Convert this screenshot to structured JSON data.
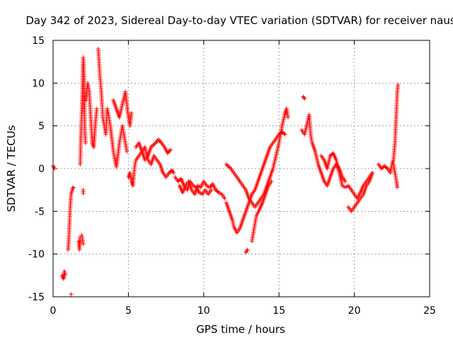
{
  "chart_data": {
    "type": "scatter",
    "title": "Day 342 of 2023, Sidereal Day-to-day VTEC variation (SDTVAR) for receiver naus",
    "xlabel": "GPS time / hours",
    "ylabel": "SDTVAR / TECUs",
    "xlim": [
      0,
      25
    ],
    "ylim": [
      -15,
      15
    ],
    "xticks": [
      0,
      5,
      10,
      15,
      20,
      25
    ],
    "yticks": [
      -15,
      -10,
      -5,
      0,
      5,
      10,
      15
    ],
    "xtick_labels": [
      "0",
      "5",
      "10",
      "15",
      "20",
      "25"
    ],
    "ytick_labels": [
      "-15",
      "-10",
      "-5",
      "0",
      "5",
      "10",
      "15"
    ],
    "grid": true,
    "marker": "+",
    "series": [
      {
        "name": "SDTVAR",
        "color": "#ff0000",
        "segments": [
          [
            [
              0.0,
              0.3
            ],
            [
              0.1,
              0.0
            ]
          ],
          [
            [
              0.6,
              -12.5
            ],
            [
              0.7,
              -12.9
            ],
            [
              0.75,
              -12.0
            ],
            [
              0.8,
              -12.4
            ]
          ],
          [
            [
              1.0,
              -9.5
            ],
            [
              1.05,
              -8.0
            ],
            [
              1.1,
              -6.0
            ],
            [
              1.15,
              -4.0
            ],
            [
              1.2,
              -3.0
            ],
            [
              1.3,
              -2.3
            ],
            [
              1.35,
              -2.2
            ]
          ],
          [
            [
              1.2,
              -14.7
            ]
          ],
          [
            [
              1.7,
              -8.5
            ],
            [
              1.75,
              -9.5
            ],
            [
              1.8,
              -8.0
            ]
          ],
          [
            [
              1.8,
              0.5
            ],
            [
              1.85,
              4.0
            ],
            [
              1.9,
              6.0
            ],
            [
              1.95,
              9.0
            ],
            [
              2.0,
              13.0
            ],
            [
              2.05,
              11.0
            ],
            [
              2.1,
              5.0
            ],
            [
              2.15,
              3.0
            ]
          ],
          [
            [
              2.0,
              -2.5
            ],
            [
              2.0,
              -2.9
            ]
          ],
          [
            [
              1.9,
              -7.8
            ],
            [
              2.0,
              -8.8
            ]
          ],
          [
            [
              2.2,
              8.0
            ],
            [
              2.3,
              10.0
            ],
            [
              2.4,
              9.0
            ],
            [
              2.5,
              6.0
            ],
            [
              2.6,
              3.0
            ],
            [
              2.7,
              2.5
            ],
            [
              2.8,
              5.0
            ],
            [
              2.9,
              7.0
            ]
          ],
          [
            [
              3.0,
              14.0
            ],
            [
              3.1,
              11.0
            ],
            [
              3.2,
              9.0
            ],
            [
              3.3,
              6.0
            ],
            [
              3.4,
              5.0
            ],
            [
              3.5,
              4.0
            ],
            [
              3.6,
              7.0
            ],
            [
              3.7,
              6.0
            ],
            [
              3.8,
              5.0
            ],
            [
              3.9,
              3.5
            ],
            [
              4.0,
              2.0
            ],
            [
              4.1,
              1.0
            ],
            [
              4.2,
              0.2
            ],
            [
              4.3,
              1.5
            ],
            [
              4.4,
              3.0
            ],
            [
              4.5,
              4.0
            ],
            [
              4.6,
              5.0
            ],
            [
              4.7,
              4.0
            ],
            [
              4.8,
              3.0
            ],
            [
              4.9,
              2.0
            ]
          ],
          [
            [
              4.0,
              8.0
            ],
            [
              4.2,
              7.0
            ],
            [
              4.4,
              6.0
            ],
            [
              4.6,
              7.5
            ],
            [
              4.8,
              9.0
            ],
            [
              5.0,
              6.0
            ],
            [
              5.1,
              5.0
            ],
            [
              5.2,
              6.5
            ]
          ],
          [
            [
              5.0,
              -1.0
            ],
            [
              5.1,
              -0.5
            ],
            [
              5.2,
              -1.5
            ],
            [
              5.3,
              -2.0
            ],
            [
              5.4,
              0.0
            ],
            [
              5.5,
              1.0
            ],
            [
              5.7,
              1.5
            ],
            [
              5.9,
              2.0
            ],
            [
              6.1,
              1.0
            ],
            [
              6.3,
              1.5
            ],
            [
              6.5,
              2.5
            ],
            [
              6.8,
              3.0
            ],
            [
              7.0,
              3.4
            ],
            [
              7.2,
              3.0
            ],
            [
              7.4,
              2.5
            ],
            [
              7.6,
              1.8
            ],
            [
              7.8,
              2.2
            ]
          ],
          [
            [
              5.5,
              2.5
            ],
            [
              5.7,
              3.0
            ],
            [
              5.9,
              2.0
            ],
            [
              6.1,
              2.5
            ],
            [
              6.3,
              1.0
            ],
            [
              6.5,
              0.5
            ],
            [
              6.7,
              1.5
            ],
            [
              6.9,
              1.0
            ],
            [
              7.1,
              0.5
            ],
            [
              7.3,
              -0.5
            ],
            [
              7.5,
              -1.0
            ],
            [
              7.7,
              -0.5
            ],
            [
              7.9,
              -0.2
            ],
            [
              8.0,
              -0.5
            ]
          ],
          [
            [
              8.1,
              -1.0
            ],
            [
              8.3,
              -1.5
            ],
            [
              8.5,
              -1.2
            ],
            [
              8.7,
              -2.0
            ],
            [
              8.9,
              -2.5
            ],
            [
              9.1,
              -1.5
            ],
            [
              9.3,
              -2.0
            ],
            [
              9.5,
              -2.2
            ],
            [
              9.7,
              -2.8
            ],
            [
              9.9,
              -3.0
            ],
            [
              10.1,
              -2.5
            ],
            [
              10.3,
              -3.0
            ],
            [
              10.5,
              -2.5
            ]
          ],
          [
            [
              8.4,
              -2.0
            ],
            [
              8.6,
              -2.8
            ],
            [
              8.8,
              -2.0
            ],
            [
              9.0,
              -1.5
            ],
            [
              9.2,
              -2.5
            ],
            [
              9.4,
              -3.0
            ],
            [
              9.6,
              -2.0
            ],
            [
              9.8,
              -2.2
            ],
            [
              10.0,
              -1.5
            ],
            [
              10.2,
              -2.0
            ],
            [
              10.4,
              -2.2
            ],
            [
              10.6,
              -1.8
            ],
            [
              10.8,
              -2.5
            ],
            [
              11.0,
              -2.8
            ],
            [
              11.2,
              -3.0
            ],
            [
              11.4,
              -3.5
            ]
          ],
          [
            [
              11.5,
              -4.0
            ],
            [
              11.6,
              -4.5
            ],
            [
              11.7,
              -5.0
            ],
            [
              11.8,
              -5.5
            ],
            [
              11.9,
              -6.0
            ],
            [
              12.0,
              -6.8
            ],
            [
              12.2,
              -7.5
            ],
            [
              12.4,
              -7.0
            ],
            [
              12.6,
              -6.0
            ],
            [
              12.8,
              -5.0
            ],
            [
              13.0,
              -4.0
            ],
            [
              13.2,
              -3.0
            ],
            [
              13.4,
              -2.5
            ],
            [
              13.6,
              -1.5
            ],
            [
              13.8,
              -0.5
            ],
            [
              14.0,
              0.5
            ],
            [
              14.2,
              1.5
            ],
            [
              14.4,
              2.5
            ],
            [
              14.6,
              3.0
            ],
            [
              14.8,
              3.5
            ],
            [
              15.0,
              4.0
            ],
            [
              15.2,
              4.3
            ],
            [
              15.4,
              4.0
            ]
          ],
          [
            [
              11.5,
              0.5
            ],
            [
              11.8,
              0.0
            ],
            [
              12.0,
              -0.5
            ],
            [
              12.2,
              -1.0
            ],
            [
              12.4,
              -1.5
            ],
            [
              12.6,
              -2.0
            ],
            [
              12.8,
              -2.5
            ],
            [
              13.0,
              -3.5
            ],
            [
              13.2,
              -4.0
            ],
            [
              13.4,
              -4.5
            ],
            [
              13.6,
              -4.0
            ],
            [
              13.8,
              -3.5
            ],
            [
              14.0,
              -3.0
            ],
            [
              14.2,
              -2.0
            ],
            [
              14.4,
              -1.0
            ],
            [
              14.6,
              0.0
            ],
            [
              14.8,
              1.5
            ],
            [
              15.0,
              3.0
            ],
            [
              15.2,
              5.0
            ],
            [
              15.4,
              6.5
            ],
            [
              15.5,
              7.0
            ],
            [
              15.6,
              6.0
            ]
          ],
          [
            [
              12.8,
              -9.8
            ],
            [
              12.9,
              -9.5
            ]
          ],
          [
            [
              13.2,
              -8.5
            ],
            [
              13.3,
              -7.5
            ],
            [
              13.4,
              -6.5
            ],
            [
              13.5,
              -5.5
            ],
            [
              13.7,
              -4.8
            ],
            [
              13.9,
              -4.0
            ],
            [
              14.1,
              -3.0
            ],
            [
              14.3,
              -2.0
            ],
            [
              14.5,
              -1.5
            ]
          ],
          [
            [
              16.6,
              8.4
            ],
            [
              16.7,
              8.2
            ]
          ],
          [
            [
              16.5,
              4.5
            ],
            [
              16.7,
              4.0
            ],
            [
              16.9,
              5.5
            ],
            [
              17.0,
              6.3
            ],
            [
              17.1,
              4.0
            ],
            [
              17.2,
              3.0
            ],
            [
              17.4,
              2.0
            ],
            [
              17.6,
              0.5
            ],
            [
              17.8,
              -0.5
            ],
            [
              18.0,
              -1.5
            ],
            [
              18.2,
              -2.0
            ],
            [
              18.4,
              -1.0
            ],
            [
              18.6,
              0.0
            ],
            [
              18.8,
              0.5
            ],
            [
              19.0,
              0.0
            ],
            [
              19.2,
              -1.0
            ],
            [
              19.4,
              -1.5
            ]
          ],
          [
            [
              17.8,
              1.5
            ],
            [
              18.0,
              1.0
            ],
            [
              18.2,
              0.0
            ],
            [
              18.4,
              1.5
            ],
            [
              18.6,
              1.8
            ],
            [
              18.8,
              1.0
            ],
            [
              19.0,
              -0.5
            ],
            [
              19.2,
              -2.0
            ],
            [
              19.4,
              -2.2
            ],
            [
              19.6,
              -2.0
            ],
            [
              19.8,
              -2.5
            ],
            [
              20.0,
              -3.0
            ],
            [
              20.2,
              -3.5
            ],
            [
              20.4,
              -2.8
            ],
            [
              20.6,
              -2.0
            ],
            [
              20.8,
              -1.5
            ],
            [
              21.0,
              -1.0
            ],
            [
              21.2,
              -0.5
            ]
          ],
          [
            [
              19.6,
              -4.5
            ],
            [
              19.8,
              -5.0
            ],
            [
              20.0,
              -4.5
            ],
            [
              20.2,
              -4.0
            ],
            [
              20.4,
              -3.5
            ],
            [
              20.6,
              -3.0
            ],
            [
              20.8,
              -2.0
            ],
            [
              21.0,
              -1.5
            ],
            [
              21.2,
              -0.5
            ]
          ],
          [
            [
              21.6,
              0.5
            ],
            [
              21.8,
              0.0
            ],
            [
              22.0,
              0.3
            ],
            [
              22.2,
              0.0
            ],
            [
              22.4,
              -0.5
            ],
            [
              22.5,
              0.5
            ],
            [
              22.6,
              1.0
            ],
            [
              22.7,
              3.0
            ],
            [
              22.75,
              5.0
            ],
            [
              22.8,
              7.0
            ],
            [
              22.85,
              9.0
            ],
            [
              22.9,
              9.8
            ]
          ],
          [
            [
              22.6,
              0.5
            ],
            [
              22.7,
              -0.5
            ],
            [
              22.8,
              -1.5
            ],
            [
              22.85,
              -2.2
            ]
          ]
        ]
      }
    ]
  }
}
